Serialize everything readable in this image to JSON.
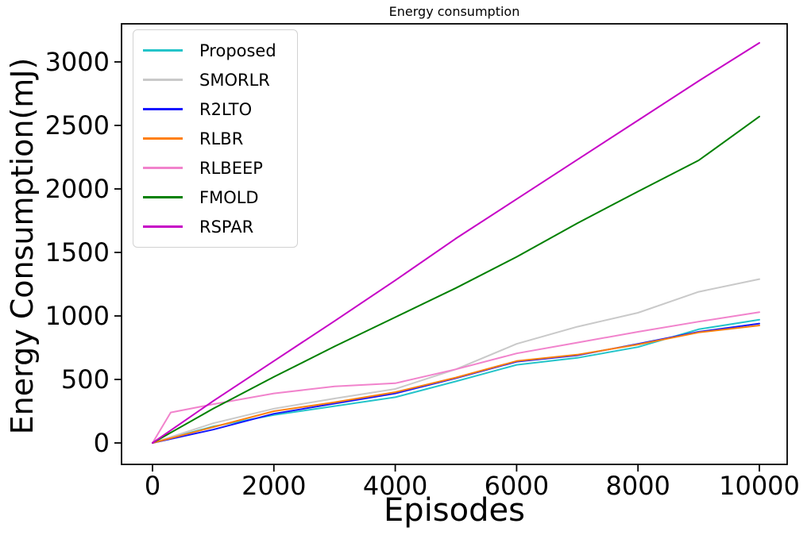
{
  "title": "Energy consumption",
  "axes": {
    "x_label": "Episodes",
    "y_label": "Energy Consumption(mJ)",
    "x_tick_labels": [
      "0",
      "2000",
      "4000",
      "6000",
      "8000",
      "10000"
    ],
    "x_tick_values": [
      0,
      2000,
      4000,
      6000,
      8000,
      10000
    ],
    "y_tick_labels": [
      "0",
      "500",
      "1000",
      "1500",
      "2000",
      "2500",
      "3000"
    ],
    "y_tick_values": [
      0,
      500,
      1000,
      1500,
      2000,
      2500,
      3000
    ]
  },
  "legend": {
    "entries": [
      "Proposed",
      "SMORLR",
      "R2LTO",
      "RLBR",
      "RLBEEP",
      "FMOLD",
      "RSPAR"
    ]
  },
  "chart_data": {
    "type": "line",
    "title": "Energy consumption",
    "xlabel": "Episodes",
    "ylabel": "Energy Consumption(mJ)",
    "xlim": [
      -510,
      10460
    ],
    "ylim": [
      -170,
      3300
    ],
    "grid": false,
    "legend_position": "upper left",
    "series": [
      {
        "name": "Proposed",
        "color": "#24c4c9",
        "x": [
          0,
          1000,
          2000,
          3000,
          4000,
          5000,
          6000,
          7000,
          8000,
          9000,
          10000
        ],
        "y": [
          0,
          130,
          220,
          290,
          360,
          485,
          615,
          670,
          755,
          895,
          970
        ]
      },
      {
        "name": "SMORLR",
        "color": "#c9c9c9",
        "x": [
          0,
          1000,
          2000,
          3000,
          4000,
          5000,
          6000,
          7000,
          8000,
          9000,
          10000
        ],
        "y": [
          0,
          155,
          270,
          350,
          425,
          580,
          780,
          915,
          1025,
          1190,
          1290
        ]
      },
      {
        "name": "R2LTO",
        "color": "#1717ff",
        "x": [
          0,
          1000,
          2000,
          3000,
          4000,
          5000,
          6000,
          7000,
          8000,
          9000,
          10000
        ],
        "y": [
          0,
          105,
          230,
          310,
          390,
          510,
          640,
          690,
          780,
          875,
          940
        ]
      },
      {
        "name": "RLBR",
        "color": "#ff7f0e",
        "x": [
          0,
          1000,
          2000,
          3000,
          4000,
          5000,
          6000,
          7000,
          8000,
          9000,
          10000
        ],
        "y": [
          0,
          125,
          250,
          320,
          400,
          515,
          645,
          695,
          775,
          870,
          925
        ]
      },
      {
        "name": "RLBEEP",
        "color": "#f183cc",
        "x": [
          0,
          300,
          1000,
          2000,
          3000,
          4000,
          5000,
          6000,
          7000,
          8000,
          9000,
          10000
        ],
        "y": [
          0,
          240,
          305,
          390,
          445,
          470,
          580,
          705,
          790,
          875,
          955,
          1030
        ]
      },
      {
        "name": "FMOLD",
        "color": "#008000",
        "x": [
          0,
          1000,
          2000,
          3000,
          4000,
          5000,
          6000,
          7000,
          8000,
          9000,
          10000
        ],
        "y": [
          0,
          270,
          520,
          760,
          990,
          1220,
          1465,
          1730,
          1980,
          2225,
          2570
        ]
      },
      {
        "name": "RSPAR",
        "color": "#c603c6",
        "x": [
          0,
          1000,
          2000,
          3000,
          4000,
          5000,
          6000,
          7000,
          8000,
          9000,
          10000
        ],
        "y": [
          0,
          330,
          645,
          960,
          1280,
          1610,
          1920,
          2230,
          2540,
          2850,
          3150
        ]
      }
    ]
  }
}
